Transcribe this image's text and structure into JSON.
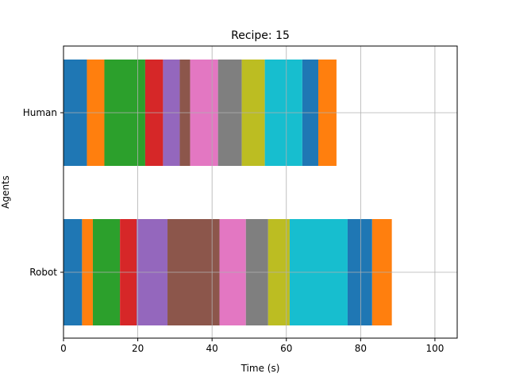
{
  "chart_data": {
    "type": "bar",
    "orientation": "horizontal",
    "stacked": true,
    "title": "Recipe: 15",
    "xlabel": "Time (s)",
    "ylabel": "Agents",
    "xlim": [
      0,
      106
    ],
    "xticks": [
      0,
      20,
      40,
      60,
      80,
      100
    ],
    "categories": [
      "Robot",
      "Human"
    ],
    "grid": true,
    "palette": [
      "#1f77b4",
      "#ff7f0e",
      "#2ca02c",
      "#d62728",
      "#9467bd",
      "#8c564b",
      "#e377c2",
      "#7f7f7f",
      "#bcbd22",
      "#17becf"
    ],
    "bars": {
      "Human": [
        {
          "start": 0,
          "end": 6.3
        },
        {
          "start": 6.3,
          "end": 11.0
        },
        {
          "start": 11.0,
          "end": 22.0
        },
        {
          "start": 22.0,
          "end": 26.8
        },
        {
          "start": 26.8,
          "end": 31.3
        },
        {
          "start": 31.3,
          "end": 34.1
        },
        {
          "start": 34.1,
          "end": 41.6
        },
        {
          "start": 41.6,
          "end": 48.0
        },
        {
          "start": 48.0,
          "end": 54.2
        },
        {
          "start": 54.2,
          "end": 64.3
        },
        {
          "start": 64.3,
          "end": 68.6
        },
        {
          "start": 68.6,
          "end": 73.5
        }
      ],
      "Robot": [
        {
          "start": 0,
          "end": 5.0
        },
        {
          "start": 5.0,
          "end": 7.9
        },
        {
          "start": 7.9,
          "end": 15.2
        },
        {
          "start": 15.2,
          "end": 19.7
        },
        {
          "start": 19.7,
          "end": 28.0
        },
        {
          "start": 28.0,
          "end": 42.0
        },
        {
          "start": 42.0,
          "end": 49.1
        },
        {
          "start": 49.1,
          "end": 55.1
        },
        {
          "start": 55.1,
          "end": 60.9
        },
        {
          "start": 60.9,
          "end": 76.5
        },
        {
          "start": 76.5,
          "end": 83.1
        },
        {
          "start": 83.1,
          "end": 88.4
        }
      ]
    }
  }
}
